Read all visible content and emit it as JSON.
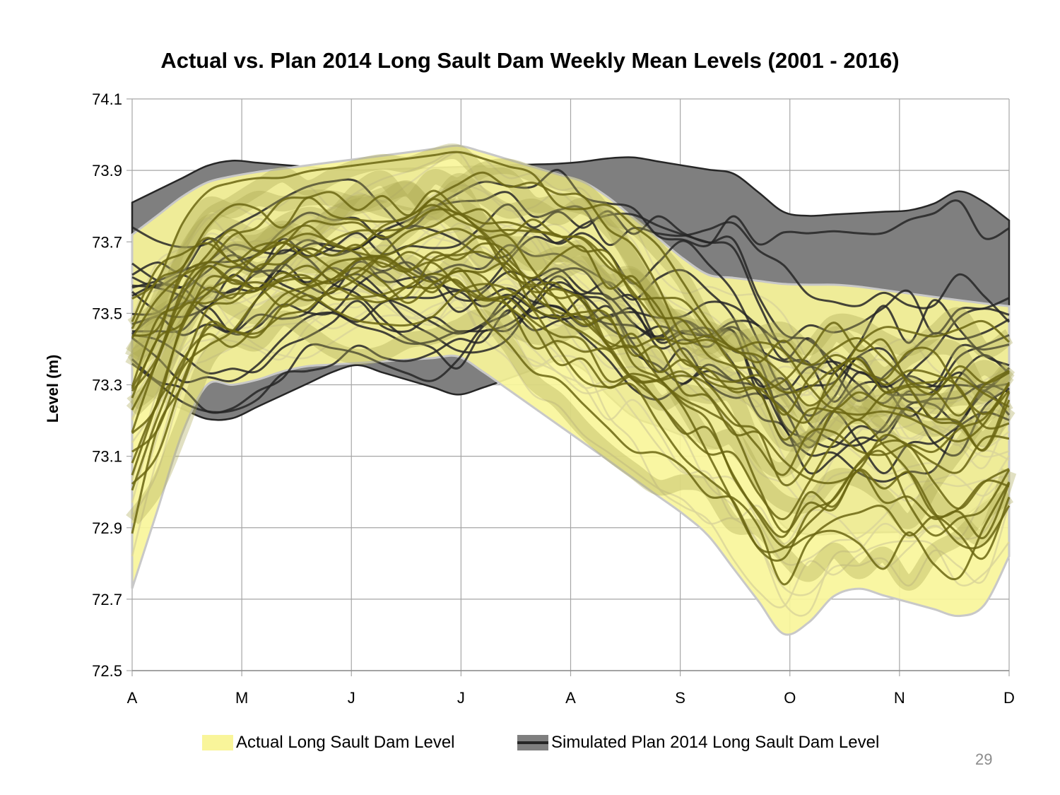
{
  "page": {
    "title": "Actual vs. Plan 2014 Long Sault Dam Weekly Mean Levels (2001 - 2016)",
    "page_number": "29"
  },
  "chart_data": {
    "type": "area",
    "title": "Actual vs. Plan 2014 Long Sault Dam Weekly Mean Levels (2001 - 2016)",
    "xlabel": "",
    "ylabel": "Level (m)",
    "ylim": [
      72.5,
      74.1
    ],
    "yticks": [
      "72.5",
      "72.7",
      "72.9",
      "73.1",
      "73.3",
      "73.5",
      "73.7",
      "73.9",
      "74.1"
    ],
    "categories": [
      "A",
      "M",
      "J",
      "J",
      "A",
      "S",
      "O",
      "N",
      "D"
    ],
    "grid": true,
    "legend_position": "bottom",
    "colors": {
      "actual_fill": "#f9f59a",
      "actual_line": "#6b6612",
      "actual_edge": "#c8c8c8",
      "plan_fill": "#7f7f7f",
      "plan_line": "#262626",
      "overlap_fill": "#a8a551"
    },
    "series": [
      {
        "name": "Actual Long Sault Dam Level",
        "envelope_max": [
          73.72,
          73.86,
          73.89,
          73.91,
          73.97,
          73.86,
          73.61,
          73.58,
          73.58,
          73.53,
          73.52
        ],
        "envelope_min": [
          72.73,
          73.3,
          73.3,
          73.35,
          73.38,
          73.12,
          72.9,
          72.58,
          72.74,
          72.64,
          72.82
        ],
        "envelope_x": [
          0,
          0.6,
          1.0,
          1.5,
          3.0,
          4.2,
          5.2,
          6.0,
          6.5,
          7.7,
          8.0
        ]
      },
      {
        "name": "Simulated Plan 2014 Long Sault Dam Level",
        "envelope_max": [
          73.81,
          73.93,
          73.9,
          73.91,
          73.92,
          73.94,
          73.89,
          73.77,
          73.79,
          73.85,
          73.76
        ],
        "envelope_min": [
          73.29,
          73.19,
          73.36,
          73.27,
          73.38,
          73.22,
          73.1,
          72.88,
          72.89,
          72.93,
          73.03
        ],
        "envelope_x": [
          0,
          0.8,
          2.0,
          3.0,
          4.0,
          4.5,
          5.5,
          6.0,
          7.2,
          7.6,
          8.0
        ]
      }
    ]
  },
  "legend": {
    "actual_label": "Actual Long Sault Dam Level",
    "plan_label": "Simulated Plan 2014 Long Sault Dam Level"
  }
}
